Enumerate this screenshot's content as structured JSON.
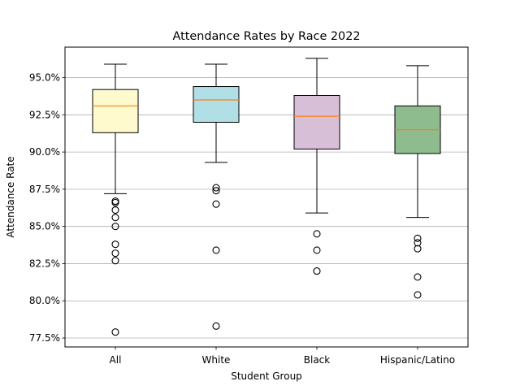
{
  "chart_data": {
    "type": "box",
    "title": "Attendance Rates by Race 2022",
    "xlabel": "Student Group",
    "ylabel": "Attendance Rate",
    "ylim": [
      0.769,
      0.9705
    ],
    "yticks": [
      0.775,
      0.8,
      0.825,
      0.85,
      0.875,
      0.9,
      0.925,
      0.95
    ],
    "ytick_labels": [
      "77.5%",
      "80.0%",
      "82.5%",
      "85.0%",
      "87.5%",
      "90.0%",
      "92.5%",
      "95.0%"
    ],
    "grid": "y",
    "median_color": "#ff7f0e",
    "categories": [
      "All",
      "White",
      "Black",
      "Hispanic/Latino"
    ],
    "boxes": [
      {
        "label": "All",
        "color": "#fffacd",
        "whislo": 0.872,
        "q1": 0.913,
        "median": 0.931,
        "q3": 0.942,
        "whishi": 0.959,
        "fliers": [
          0.867,
          0.866,
          0.861,
          0.856,
          0.85,
          0.838,
          0.832,
          0.827,
          0.779
        ]
      },
      {
        "label": "White",
        "color": "#b0dfe5",
        "whislo": 0.893,
        "q1": 0.92,
        "median": 0.935,
        "q3": 0.944,
        "whishi": 0.959,
        "fliers": [
          0.876,
          0.874,
          0.865,
          0.834,
          0.783
        ]
      },
      {
        "label": "Black",
        "color": "#d8bfd8",
        "whislo": 0.859,
        "q1": 0.902,
        "median": 0.924,
        "q3": 0.938,
        "whishi": 0.963,
        "fliers": [
          0.845,
          0.834,
          0.82
        ]
      },
      {
        "label": "Hispanic/Latino",
        "color": "#8fbc8f",
        "whislo": 0.856,
        "q1": 0.899,
        "median": 0.915,
        "q3": 0.931,
        "whishi": 0.958,
        "fliers": [
          0.842,
          0.839,
          0.835,
          0.816,
          0.804
        ]
      }
    ]
  }
}
